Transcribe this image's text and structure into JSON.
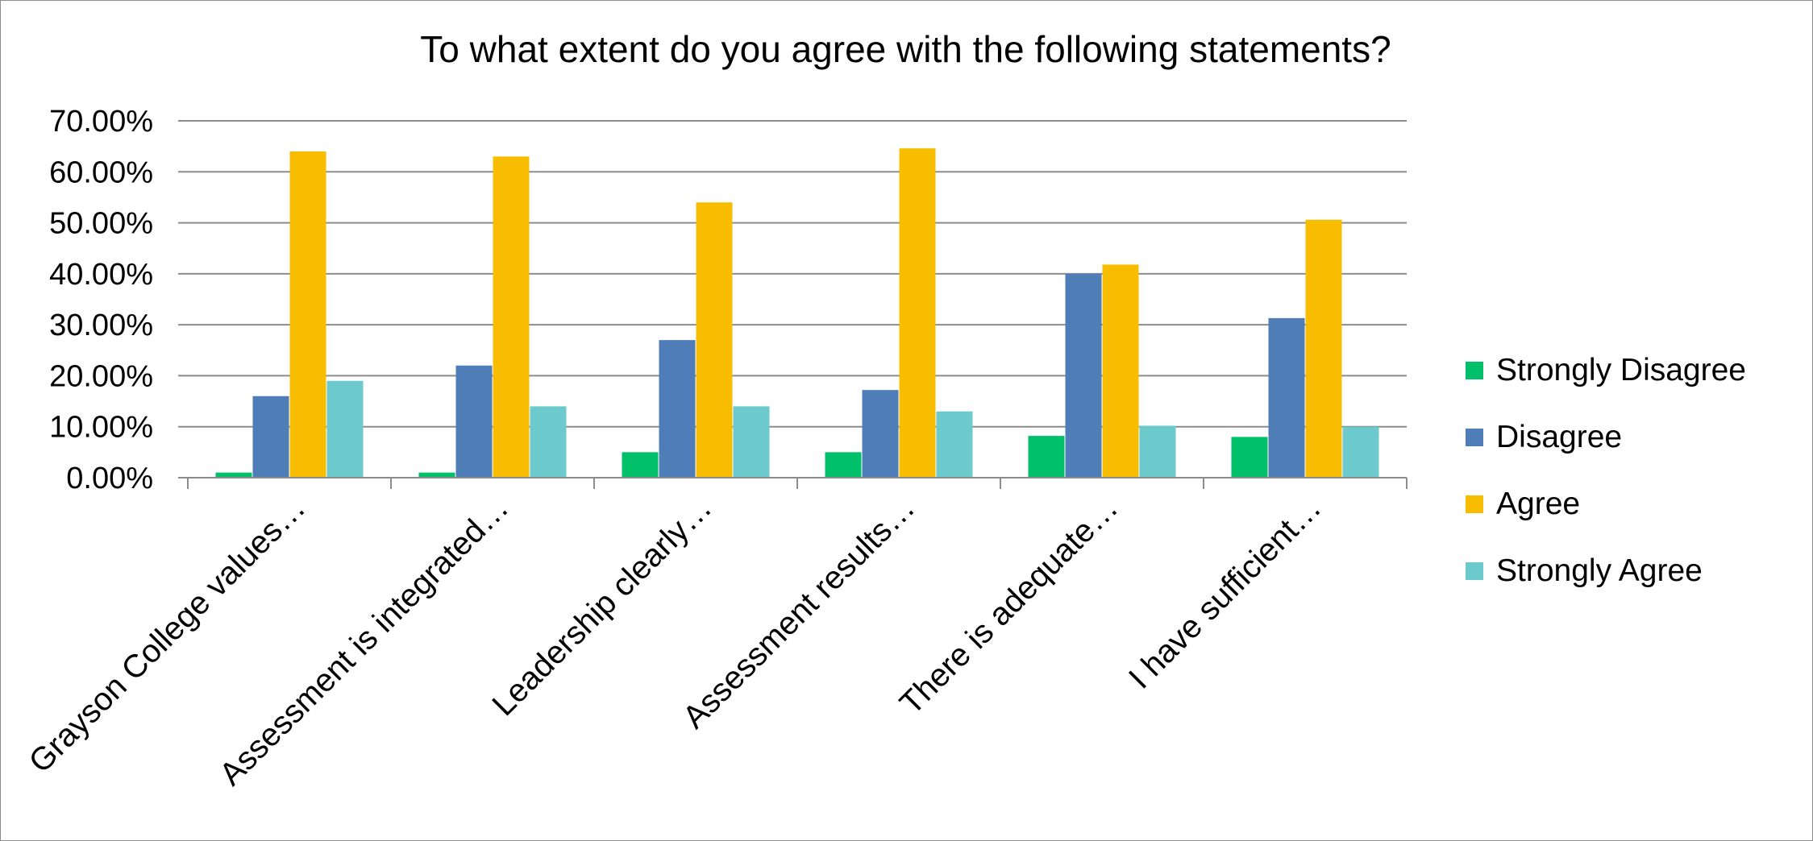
{
  "chart_data": {
    "type": "bar",
    "title": "To what extent do you agree with the following statements?",
    "xlabel": "",
    "ylabel": "",
    "ylim": [
      0,
      70
    ],
    "yticks": [
      "0.00%",
      "10.00%",
      "20.00%",
      "30.00%",
      "40.00%",
      "50.00%",
      "60.00%",
      "70.00%"
    ],
    "categories": [
      "Grayson College values…",
      "Assessment is integrated…",
      "Leadership clearly…",
      "Assessment results…",
      "There is adequate…",
      "I have sufficient…"
    ],
    "series": [
      {
        "name": "Strongly Disagree",
        "color": "#00c06a",
        "values": [
          1.0,
          1.0,
          5.0,
          5.0,
          8.2,
          8.0
        ]
      },
      {
        "name": "Disagree",
        "color": "#4f7db8",
        "values": [
          16.0,
          22.0,
          27.0,
          17.2,
          40.0,
          31.3
        ]
      },
      {
        "name": "Agree",
        "color": "#f8bc00",
        "values": [
          64.0,
          63.0,
          54.0,
          64.6,
          41.8,
          50.6
        ]
      },
      {
        "name": "Strongly Agree",
        "color": "#6ccacc",
        "values": [
          19.0,
          14.0,
          14.0,
          13.0,
          10.2,
          10.0
        ]
      }
    ],
    "grid": true,
    "legend_position": "right"
  }
}
